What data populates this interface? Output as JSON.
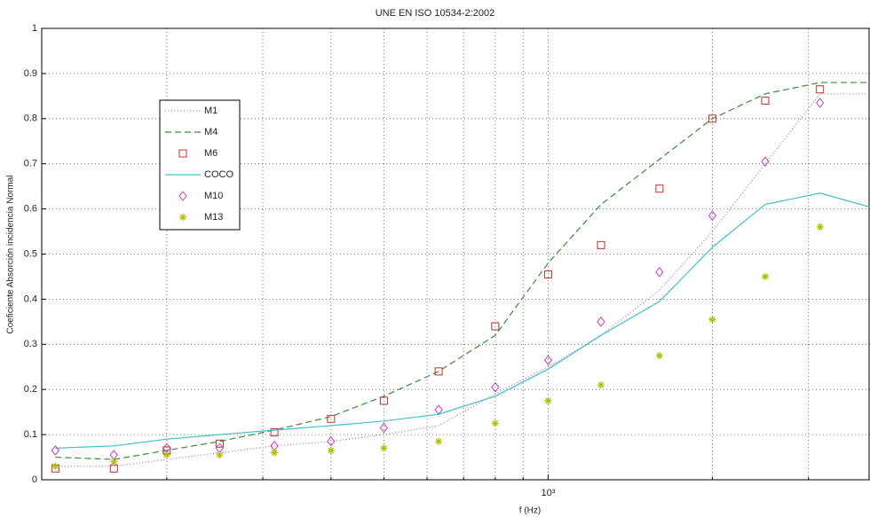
{
  "chart_data": {
    "type": "line",
    "title": "UNE EN ISO 10534-2:2002",
    "xlabel": "f (Hz)",
    "ylabel": "Coeficiente Absorción incidencia Normal",
    "x": [
      125,
      160,
      200,
      250,
      315,
      400,
      500,
      630,
      800,
      1000,
      1250,
      1600,
      2000,
      2500,
      3150,
      4000
    ],
    "xscale": "log",
    "xlim": [
      118,
      3890
    ],
    "xticks": [
      {
        "value": 1000,
        "label": "10³"
      }
    ],
    "xminor": [
      200,
      300,
      400,
      500,
      600,
      700,
      800,
      900,
      2000,
      3000
    ],
    "ylim": [
      0,
      1
    ],
    "yticks": [
      0,
      0.1,
      0.2,
      0.3,
      0.4,
      0.5,
      0.6,
      0.7,
      0.8,
      0.9,
      1
    ],
    "grid": true,
    "legend": "upper left",
    "series": [
      {
        "name": "M1",
        "color": "#a070c8",
        "line": "dotted",
        "values": [
          0.03,
          0.03,
          0.045,
          0.06,
          0.075,
          0.085,
          0.1,
          0.12,
          0.19,
          0.25,
          0.32,
          0.42,
          0.55,
          0.7,
          0.855,
          0.855
        ]
      },
      {
        "name": "M4",
        "color": "#3a8a3a",
        "line": "dashed",
        "values": [
          0.05,
          0.045,
          0.065,
          0.085,
          0.11,
          0.14,
          0.185,
          0.24,
          0.32,
          0.48,
          0.61,
          0.71,
          0.8,
          0.855,
          0.88,
          0.88
        ]
      },
      {
        "name": "M6",
        "color": "#c03030",
        "marker": "square",
        "values": [
          0.025,
          0.025,
          0.065,
          0.08,
          0.105,
          0.135,
          0.175,
          0.24,
          0.34,
          0.455,
          0.52,
          0.645,
          0.8,
          0.84,
          0.865,
          null
        ]
      },
      {
        "name": "COCO",
        "color": "#40c0c8",
        "line": "solid",
        "values": [
          0.07,
          0.075,
          0.09,
          0.1,
          0.11,
          0.12,
          0.13,
          0.145,
          0.185,
          0.245,
          0.32,
          0.395,
          0.515,
          0.61,
          0.635,
          0.6
        ]
      },
      {
        "name": "M10",
        "color": "#c040c0",
        "marker": "diamond",
        "values": [
          0.065,
          0.055,
          0.07,
          0.07,
          0.075,
          0.085,
          0.115,
          0.155,
          0.205,
          0.265,
          0.35,
          0.46,
          0.585,
          0.705,
          0.835,
          null
        ]
      },
      {
        "name": "M13",
        "color": "#b0c000",
        "marker": "star",
        "values": [
          0.03,
          0.04,
          0.055,
          0.055,
          0.06,
          0.065,
          0.07,
          0.085,
          0.125,
          0.175,
          0.21,
          0.275,
          0.355,
          0.45,
          0.56,
          null
        ]
      }
    ]
  }
}
